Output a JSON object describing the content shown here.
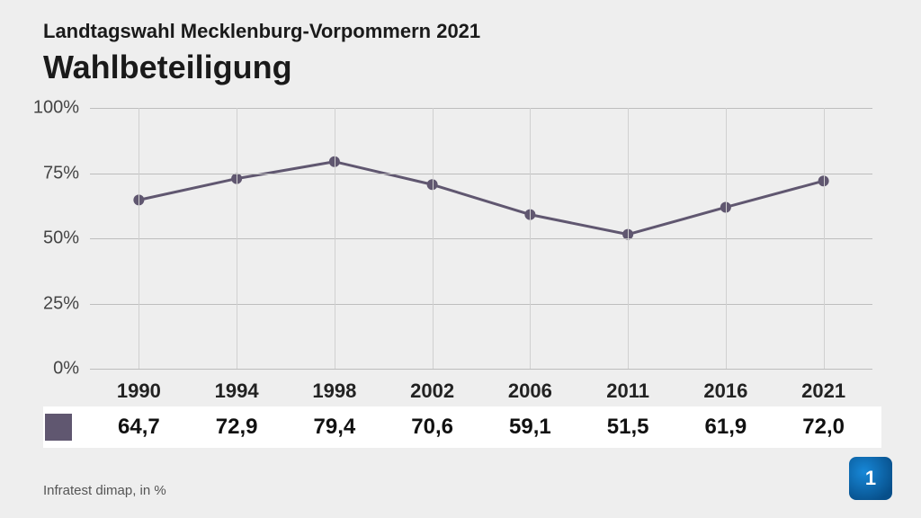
{
  "header": {
    "subtitle": "Landtagswahl Mecklenburg-Vorpommern 2021",
    "title": "Wahlbeteiligung"
  },
  "chart": {
    "type": "line",
    "categories": [
      "1990",
      "1994",
      "1998",
      "2002",
      "2006",
      "2011",
      "2016",
      "2021"
    ],
    "values": [
      64.7,
      72.9,
      79.4,
      70.6,
      59.1,
      51.5,
      61.9,
      72.0
    ],
    "value_labels": [
      "64,7",
      "72,9",
      "79,4",
      "70,6",
      "59,1",
      "51,5",
      "61,9",
      "72,0"
    ],
    "ylim": [
      0,
      100
    ],
    "ytick_step": 25,
    "ytick_labels": [
      "0%",
      "25%",
      "50%",
      "75%",
      "100%"
    ],
    "line_color": "#605770",
    "marker_color": "#605770",
    "marker_radius": 6,
    "line_width": 3,
    "background_color": "#eeeeee",
    "grid_color": "#bdbdbd",
    "label_fontsize": 22,
    "value_fontsize": 24,
    "series_swatch_color": "#605770"
  },
  "footer": {
    "source": "Infratest dimap, in %",
    "logo_text": "1"
  }
}
